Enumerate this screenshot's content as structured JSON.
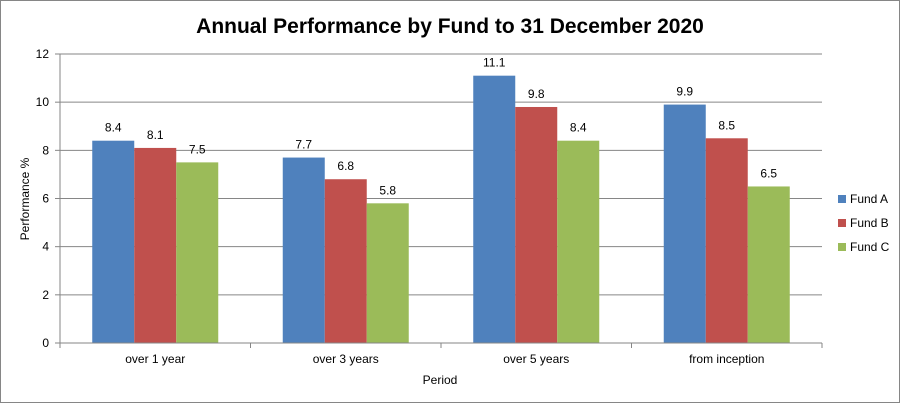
{
  "chart_data": {
    "type": "bar",
    "title": "Annual Performance by Fund to 31 December 2020",
    "xlabel": "Period",
    "ylabel": "Performance %",
    "categories": [
      "over 1 year",
      "over 3 years",
      "over 5 years",
      "from inception"
    ],
    "series": [
      {
        "name": "Fund A",
        "color": "#4F81BD",
        "values": [
          8.4,
          7.7,
          11.1,
          9.9
        ]
      },
      {
        "name": "Fund B",
        "color": "#C0504D",
        "values": [
          8.1,
          6.8,
          9.8,
          8.5
        ]
      },
      {
        "name": "Fund C",
        "color": "#9BBB59",
        "values": [
          7.5,
          5.8,
          8.4,
          6.5
        ]
      }
    ],
    "ylim": [
      0,
      12
    ],
    "yticks": [
      0,
      2,
      4,
      6,
      8,
      10,
      12
    ],
    "grid": true,
    "legend_position": "right",
    "data_labels": true
  }
}
